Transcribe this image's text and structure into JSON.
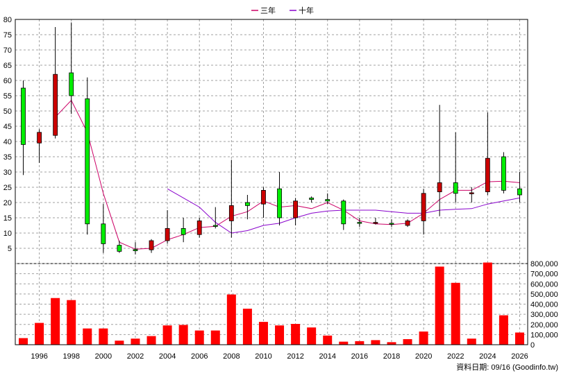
{
  "legend": [
    {
      "label": "三年",
      "color": "#cc0066"
    },
    {
      "label": "十年",
      "color": "#8800cc"
    }
  ],
  "footer": "資料日期: 09/16  (Goodinfo.tw)",
  "chart_data": [
    {
      "type": "candlestick",
      "panel": "price",
      "ylim": [
        0,
        80
      ],
      "y_ticks": [
        5,
        10,
        15,
        20,
        25,
        30,
        35,
        40,
        45,
        50,
        55,
        60,
        65,
        70,
        75,
        80
      ],
      "xlim": [
        1994.5,
        2026.5
      ],
      "x_ticks": [
        1996,
        1998,
        2000,
        2002,
        2004,
        2006,
        2008,
        2010,
        2012,
        2014,
        2016,
        2018,
        2020,
        2022,
        2024,
        2026
      ],
      "grid": true,
      "legend_position": "top-center",
      "candles": [
        {
          "x": 1995,
          "open": 39,
          "close": 57.5,
          "high": 60,
          "low": 29
        },
        {
          "x": 1996,
          "open": 43,
          "close": 39.5,
          "high": 44,
          "low": 33
        },
        {
          "x": 1997,
          "open": 62,
          "close": 42,
          "high": 77.5,
          "low": 41
        },
        {
          "x": 1998,
          "open": 55,
          "close": 62.5,
          "high": 79,
          "low": 49
        },
        {
          "x": 1999,
          "open": 13,
          "close": 54,
          "high": 61,
          "low": 9.5
        },
        {
          "x": 2000,
          "open": 6.5,
          "close": 13,
          "high": 19.5,
          "low": 3.5
        },
        {
          "x": 2001,
          "open": 4,
          "close": 6,
          "high": 7.5,
          "low": 3.5
        },
        {
          "x": 2002,
          "open": 4.2,
          "close": 4.6,
          "high": 7,
          "low": 3
        },
        {
          "x": 2003,
          "open": 7.5,
          "close": 4.5,
          "high": 8,
          "low": 3.5
        },
        {
          "x": 2004,
          "open": 11.5,
          "close": 7.5,
          "high": 17.5,
          "low": 6.5
        },
        {
          "x": 2005,
          "open": 9.5,
          "close": 11.5,
          "high": 15,
          "low": 7
        },
        {
          "x": 2006,
          "open": 14,
          "close": 9.5,
          "high": 15,
          "low": 8.5
        },
        {
          "x": 2007,
          "open": 12.5,
          "close": 12.5,
          "high": 18.5,
          "low": 11.5
        },
        {
          "x": 2008,
          "open": 19,
          "close": 14,
          "high": 34,
          "low": 8.5
        },
        {
          "x": 2009,
          "open": 19,
          "close": 20,
          "high": 22.5,
          "low": 14.5
        },
        {
          "x": 2010,
          "open": 24,
          "close": 19.5,
          "high": 25,
          "low": 15
        },
        {
          "x": 2011,
          "open": 15,
          "close": 24.5,
          "high": 30,
          "low": 12.5
        },
        {
          "x": 2012,
          "open": 20.5,
          "close": 15,
          "high": 21.5,
          "low": 12.5
        },
        {
          "x": 2013,
          "open": 21,
          "close": 21.5,
          "high": 22,
          "low": 20
        },
        {
          "x": 2014,
          "open": 20.5,
          "close": 21,
          "high": 23,
          "low": 19.5
        },
        {
          "x": 2015,
          "open": 13,
          "close": 20.5,
          "high": 21,
          "low": 11
        },
        {
          "x": 2016,
          "open": 13.2,
          "close": 13.5,
          "high": 15,
          "low": 12
        },
        {
          "x": 2017,
          "open": 13.5,
          "close": 13.3,
          "high": 15,
          "low": 12.8
        },
        {
          "x": 2018,
          "open": 13,
          "close": 13.2,
          "high": 14.5,
          "low": 12
        },
        {
          "x": 2019,
          "open": 14,
          "close": 12.5,
          "high": 14.5,
          "low": 12
        },
        {
          "x": 2020,
          "open": 23,
          "close": 14,
          "high": 24.5,
          "low": 9.5
        },
        {
          "x": 2021,
          "open": 26.5,
          "close": 23.5,
          "high": 52,
          "low": 15.5
        },
        {
          "x": 2022,
          "open": 23,
          "close": 26.5,
          "high": 43,
          "low": 20
        },
        {
          "x": 2023,
          "open": 23.2,
          "close": 23,
          "high": 25,
          "low": 20
        },
        {
          "x": 2024,
          "open": 34.5,
          "close": 23.5,
          "high": 49.5,
          "low": 22.5
        },
        {
          "x": 2025,
          "open": 24,
          "close": 35,
          "high": 36.5,
          "low": 23
        },
        {
          "x": 2026,
          "open": 22.5,
          "close": 24.5,
          "high": 30,
          "low": 20
        }
      ],
      "series": [
        {
          "name": "三年",
          "color": "#cc0066",
          "points": [
            [
              1997,
              48
            ],
            [
              1998,
              53.5
            ],
            [
              1999,
              43
            ],
            [
              2000,
              23
            ],
            [
              2001,
              7
            ],
            [
              2002,
              4.7
            ],
            [
              2003,
              5
            ],
            [
              2004,
              7.8
            ],
            [
              2005,
              9.5
            ],
            [
              2006,
              11.8
            ],
            [
              2007,
              12.2
            ],
            [
              2008,
              15.5
            ],
            [
              2009,
              17
            ],
            [
              2010,
              20.5
            ],
            [
              2011,
              18.5
            ],
            [
              2012,
              19
            ],
            [
              2013,
              18
            ],
            [
              2014,
              20
            ],
            [
              2015,
              17.5
            ],
            [
              2016,
              14
            ],
            [
              2017,
              13
            ],
            [
              2018,
              12.8
            ],
            [
              2019,
              13.2
            ],
            [
              2020,
              16.5
            ],
            [
              2021,
              21
            ],
            [
              2022,
              24
            ],
            [
              2023,
              24
            ],
            [
              2024,
              26.8
            ],
            [
              2025,
              27
            ],
            [
              2026,
              26.5
            ]
          ]
        },
        {
          "name": "十年",
          "color": "#8800cc",
          "points": [
            [
              2004,
              24.5
            ],
            [
              2005,
              21.5
            ],
            [
              2006,
              18.5
            ],
            [
              2007,
              13.5
            ],
            [
              2008,
              10
            ],
            [
              2009,
              10.8
            ],
            [
              2010,
              12.5
            ],
            [
              2011,
              13.2
            ],
            [
              2012,
              15
            ],
            [
              2013,
              16.5
            ],
            [
              2014,
              17.2
            ],
            [
              2015,
              17.5
            ],
            [
              2016,
              17.5
            ],
            [
              2017,
              17.5
            ],
            [
              2018,
              17
            ],
            [
              2019,
              16.5
            ],
            [
              2020,
              16.5
            ],
            [
              2021,
              17.5
            ],
            [
              2022,
              17.8
            ],
            [
              2023,
              18
            ],
            [
              2024,
              19.5
            ],
            [
              2025,
              20.5
            ],
            [
              2026,
              21.5
            ]
          ]
        }
      ]
    },
    {
      "type": "bar",
      "panel": "volume",
      "color": "#ff0000",
      "ylim": [
        0,
        800000
      ],
      "y_ticks": [
        0,
        100000,
        200000,
        300000,
        400000,
        500000,
        600000,
        700000,
        800000
      ],
      "y_tick_labels": [
        "0",
        "100,000",
        "200,000",
        "300,000",
        "400,000",
        "500,000",
        "600,000",
        "700,000",
        "800,000"
      ],
      "x": [
        1995,
        1996,
        1997,
        1998,
        1999,
        2000,
        2001,
        2002,
        2003,
        2004,
        2005,
        2006,
        2007,
        2008,
        2009,
        2010,
        2011,
        2012,
        2013,
        2014,
        2015,
        2016,
        2017,
        2018,
        2019,
        2020,
        2021,
        2022,
        2023,
        2024,
        2025,
        2026
      ],
      "values": [
        65000,
        215000,
        460000,
        440000,
        160000,
        160000,
        40000,
        60000,
        85000,
        190000,
        195000,
        140000,
        140000,
        495000,
        355000,
        225000,
        190000,
        205000,
        170000,
        90000,
        30000,
        35000,
        45000,
        25000,
        55000,
        130000,
        770000,
        610000,
        60000,
        810000,
        290000,
        120000
      ]
    }
  ]
}
